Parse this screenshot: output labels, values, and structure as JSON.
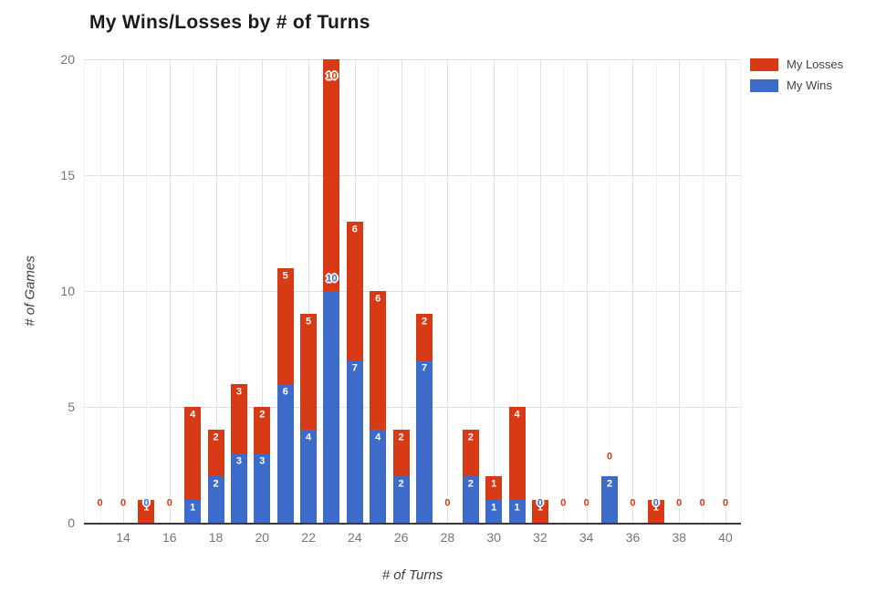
{
  "chart_data": {
    "type": "bar",
    "stacked": true,
    "title": "My Wins/Losses by # of Turns",
    "xlabel": "# of Turns",
    "ylabel": "# of Games",
    "x": [
      13,
      14,
      15,
      16,
      17,
      18,
      19,
      20,
      21,
      22,
      23,
      24,
      25,
      26,
      27,
      28,
      29,
      30,
      31,
      32,
      33,
      34,
      35,
      36,
      37,
      38,
      39,
      40
    ],
    "series": [
      {
        "name": "My Wins",
        "color": "#3c6bc9",
        "values": [
          0,
          0,
          0,
          0,
          1,
          2,
          3,
          3,
          6,
          4,
          10,
          7,
          4,
          2,
          7,
          0,
          2,
          1,
          1,
          0,
          0,
          0,
          2,
          0,
          0,
          0,
          0,
          0
        ]
      },
      {
        "name": "My Losses",
        "color": "#d73a15",
        "values": [
          0,
          0,
          1,
          0,
          4,
          2,
          3,
          2,
          5,
          5,
          10,
          6,
          6,
          2,
          2,
          0,
          2,
          1,
          4,
          1,
          0,
          0,
          0,
          0,
          1,
          0,
          0,
          0
        ]
      }
    ],
    "legend_order": [
      "My Losses",
      "My Wins"
    ],
    "legend_position": "right",
    "grid": true,
    "ylim": [
      0,
      20
    ],
    "yticks": [
      0,
      5,
      10,
      15,
      20
    ],
    "xticks": [
      14,
      16,
      18,
      20,
      22,
      24,
      26,
      28,
      30,
      32,
      34,
      36,
      38,
      40
    ],
    "colors": {
      "wins": "#3c6bc9",
      "losses": "#d73a15",
      "grid_major": "#e0e0e0",
      "grid_minor": "#f2f2f2",
      "axis_line": "#3a3a3a",
      "tick_text": "#757575"
    }
  }
}
